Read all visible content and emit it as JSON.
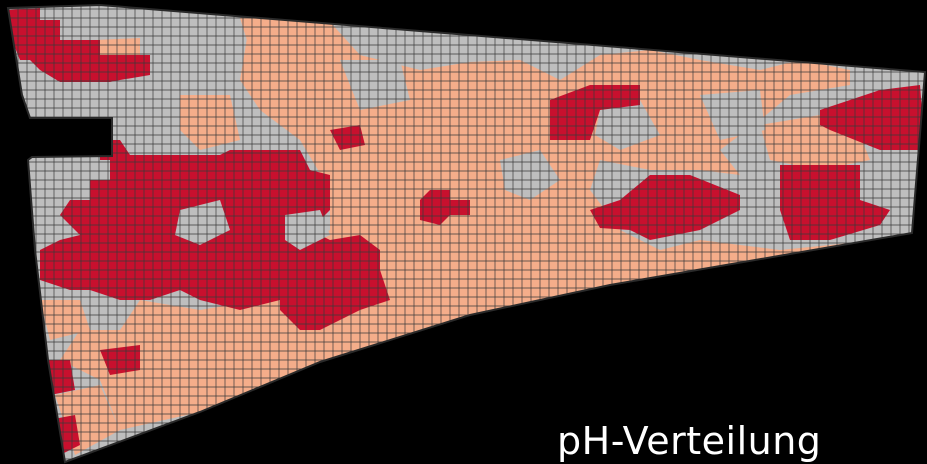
{
  "map": {
    "caption": "pH-Verteilung",
    "colors": {
      "background": "#000000",
      "grid_line": "#3a3a3a",
      "outline": "#2a2a2a",
      "class_low": "#c8102e",
      "class_mid": "#bebebe",
      "class_high": "#f4ad8a"
    }
  }
}
